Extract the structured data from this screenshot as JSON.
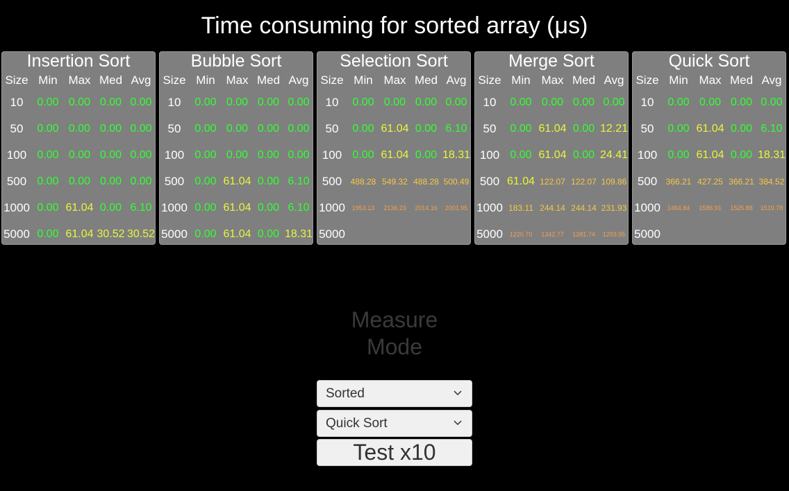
{
  "title": "Time consuming for sorted array (μs)",
  "colors": {
    "green": "#33ff33",
    "yellow": "#e8f53c",
    "amber": "#f5c842",
    "orange": "#f5a04a",
    "red": "#ff4a3a"
  },
  "columns": [
    "Size",
    "Min",
    "Max",
    "Med",
    "Avg"
  ],
  "panels": [
    {
      "name": "Insertion Sort",
      "rows": [
        {
          "size": "10",
          "cells": [
            {
              "v": "0.00",
              "c": "green"
            },
            {
              "v": "0.00",
              "c": "green"
            },
            {
              "v": "0.00",
              "c": "green"
            },
            {
              "v": "0.00",
              "c": "green"
            }
          ]
        },
        {
          "size": "50",
          "cells": [
            {
              "v": "0.00",
              "c": "green"
            },
            {
              "v": "0.00",
              "c": "green"
            },
            {
              "v": "0.00",
              "c": "green"
            },
            {
              "v": "0.00",
              "c": "green"
            }
          ]
        },
        {
          "size": "100",
          "cells": [
            {
              "v": "0.00",
              "c": "green"
            },
            {
              "v": "0.00",
              "c": "green"
            },
            {
              "v": "0.00",
              "c": "green"
            },
            {
              "v": "0.00",
              "c": "green"
            }
          ]
        },
        {
          "size": "500",
          "cells": [
            {
              "v": "0.00",
              "c": "green"
            },
            {
              "v": "0.00",
              "c": "green"
            },
            {
              "v": "0.00",
              "c": "green"
            },
            {
              "v": "0.00",
              "c": "green"
            }
          ]
        },
        {
          "size": "1000",
          "cells": [
            {
              "v": "0.00",
              "c": "green"
            },
            {
              "v": "61.04",
              "c": "yellow"
            },
            {
              "v": "0.00",
              "c": "green"
            },
            {
              "v": "6.10",
              "c": "green"
            }
          ]
        },
        {
          "size": "5000",
          "cells": [
            {
              "v": "0.00",
              "c": "green"
            },
            {
              "v": "61.04",
              "c": "yellow"
            },
            {
              "v": "30.52",
              "c": "yellow"
            },
            {
              "v": "30.52",
              "c": "yellow"
            }
          ]
        }
      ]
    },
    {
      "name": "Bubble Sort",
      "rows": [
        {
          "size": "10",
          "cells": [
            {
              "v": "0.00",
              "c": "green"
            },
            {
              "v": "0.00",
              "c": "green"
            },
            {
              "v": "0.00",
              "c": "green"
            },
            {
              "v": "0.00",
              "c": "green"
            }
          ]
        },
        {
          "size": "50",
          "cells": [
            {
              "v": "0.00",
              "c": "green"
            },
            {
              "v": "0.00",
              "c": "green"
            },
            {
              "v": "0.00",
              "c": "green"
            },
            {
              "v": "0.00",
              "c": "green"
            }
          ]
        },
        {
          "size": "100",
          "cells": [
            {
              "v": "0.00",
              "c": "green"
            },
            {
              "v": "0.00",
              "c": "green"
            },
            {
              "v": "0.00",
              "c": "green"
            },
            {
              "v": "0.00",
              "c": "green"
            }
          ]
        },
        {
          "size": "500",
          "cells": [
            {
              "v": "0.00",
              "c": "green"
            },
            {
              "v": "61.04",
              "c": "yellow"
            },
            {
              "v": "0.00",
              "c": "green"
            },
            {
              "v": "6.10",
              "c": "green"
            }
          ]
        },
        {
          "size": "1000",
          "cells": [
            {
              "v": "0.00",
              "c": "green"
            },
            {
              "v": "61.04",
              "c": "yellow"
            },
            {
              "v": "0.00",
              "c": "green"
            },
            {
              "v": "6.10",
              "c": "green"
            }
          ]
        },
        {
          "size": "5000",
          "cells": [
            {
              "v": "0.00",
              "c": "green"
            },
            {
              "v": "61.04",
              "c": "yellow"
            },
            {
              "v": "0.00",
              "c": "green"
            },
            {
              "v": "18.31",
              "c": "yellow"
            }
          ]
        }
      ]
    },
    {
      "name": "Selection Sort",
      "rows": [
        {
          "size": "10",
          "cells": [
            {
              "v": "0.00",
              "c": "green"
            },
            {
              "v": "0.00",
              "c": "green"
            },
            {
              "v": "0.00",
              "c": "green"
            },
            {
              "v": "0.00",
              "c": "green"
            }
          ]
        },
        {
          "size": "50",
          "cells": [
            {
              "v": "0.00",
              "c": "green"
            },
            {
              "v": "61.04",
              "c": "yellow"
            },
            {
              "v": "0.00",
              "c": "green"
            },
            {
              "v": "6.10",
              "c": "green"
            }
          ]
        },
        {
          "size": "100",
          "cells": [
            {
              "v": "0.00",
              "c": "green"
            },
            {
              "v": "61.04",
              "c": "yellow"
            },
            {
              "v": "0.00",
              "c": "green"
            },
            {
              "v": "18.31",
              "c": "yellow"
            }
          ]
        },
        {
          "size": "500",
          "cells": [
            {
              "v": "488.28",
              "c": "amber"
            },
            {
              "v": "549.32",
              "c": "amber"
            },
            {
              "v": "488.28",
              "c": "amber"
            },
            {
              "v": "500.49",
              "c": "amber"
            }
          ]
        },
        {
          "size": "1000",
          "cells": [
            {
              "v": "1953.13",
              "c": "orange"
            },
            {
              "v": "2136.23",
              "c": "orange"
            },
            {
              "v": "2014.16",
              "c": "orange"
            },
            {
              "v": "2001.95",
              "c": "orange"
            }
          ]
        },
        {
          "size": "5000",
          "cells": [
            {
              "v": "",
              "c": "red"
            },
            {
              "v": "",
              "c": "red"
            },
            {
              "v": "",
              "c": "red"
            },
            {
              "v": "",
              "c": "red"
            }
          ]
        }
      ]
    },
    {
      "name": "Merge Sort",
      "rows": [
        {
          "size": "10",
          "cells": [
            {
              "v": "0.00",
              "c": "green"
            },
            {
              "v": "0.00",
              "c": "green"
            },
            {
              "v": "0.00",
              "c": "green"
            },
            {
              "v": "0.00",
              "c": "green"
            }
          ]
        },
        {
          "size": "50",
          "cells": [
            {
              "v": "0.00",
              "c": "green"
            },
            {
              "v": "61.04",
              "c": "yellow"
            },
            {
              "v": "0.00",
              "c": "green"
            },
            {
              "v": "12.21",
              "c": "yellow"
            }
          ]
        },
        {
          "size": "100",
          "cells": [
            {
              "v": "0.00",
              "c": "green"
            },
            {
              "v": "61.04",
              "c": "yellow"
            },
            {
              "v": "0.00",
              "c": "green"
            },
            {
              "v": "24.41",
              "c": "yellow"
            }
          ]
        },
        {
          "size": "500",
          "cells": [
            {
              "v": "61.04",
              "c": "yellow"
            },
            {
              "v": "122.07",
              "c": "amber"
            },
            {
              "v": "122.07",
              "c": "amber"
            },
            {
              "v": "109.86",
              "c": "amber"
            }
          ]
        },
        {
          "size": "1000",
          "cells": [
            {
              "v": "183.11",
              "c": "amber"
            },
            {
              "v": "244.14",
              "c": "amber"
            },
            {
              "v": "244.14",
              "c": "amber"
            },
            {
              "v": "231.93",
              "c": "amber"
            }
          ]
        },
        {
          "size": "5000",
          "cells": [
            {
              "v": "1220.70",
              "c": "orange"
            },
            {
              "v": "1342.77",
              "c": "orange"
            },
            {
              "v": "1281.74",
              "c": "orange"
            },
            {
              "v": "1293.95",
              "c": "orange"
            }
          ]
        }
      ]
    },
    {
      "name": "Quick Sort",
      "rows": [
        {
          "size": "10",
          "cells": [
            {
              "v": "0.00",
              "c": "green"
            },
            {
              "v": "0.00",
              "c": "green"
            },
            {
              "v": "0.00",
              "c": "green"
            },
            {
              "v": "0.00",
              "c": "green"
            }
          ]
        },
        {
          "size": "50",
          "cells": [
            {
              "v": "0.00",
              "c": "green"
            },
            {
              "v": "61.04",
              "c": "yellow"
            },
            {
              "v": "0.00",
              "c": "green"
            },
            {
              "v": "6.10",
              "c": "green"
            }
          ]
        },
        {
          "size": "100",
          "cells": [
            {
              "v": "0.00",
              "c": "green"
            },
            {
              "v": "61.04",
              "c": "yellow"
            },
            {
              "v": "0.00",
              "c": "green"
            },
            {
              "v": "18.31",
              "c": "yellow"
            }
          ]
        },
        {
          "size": "500",
          "cells": [
            {
              "v": "366.21",
              "c": "amber"
            },
            {
              "v": "427.25",
              "c": "amber"
            },
            {
              "v": "366.21",
              "c": "amber"
            },
            {
              "v": "384.52",
              "c": "amber"
            }
          ]
        },
        {
          "size": "1000",
          "cells": [
            {
              "v": "1464.84",
              "c": "orange"
            },
            {
              "v": "1586.91",
              "c": "orange"
            },
            {
              "v": "1525.88",
              "c": "orange"
            },
            {
              "v": "1519.78",
              "c": "orange"
            }
          ]
        },
        {
          "size": "5000",
          "cells": [
            {
              "v": "",
              "c": "red"
            },
            {
              "v": "",
              "c": "red"
            },
            {
              "v": "",
              "c": "red"
            },
            {
              "v": "",
              "c": "red"
            }
          ]
        }
      ]
    }
  ],
  "measure_label": "Measure Mode",
  "order_dropdown": {
    "value": "Sorted",
    "icon": "chevron-down-icon"
  },
  "algorithm_dropdown": {
    "value": "Quick Sort",
    "icon": "chevron-down-icon"
  },
  "test_button": {
    "label": "Test x10"
  }
}
